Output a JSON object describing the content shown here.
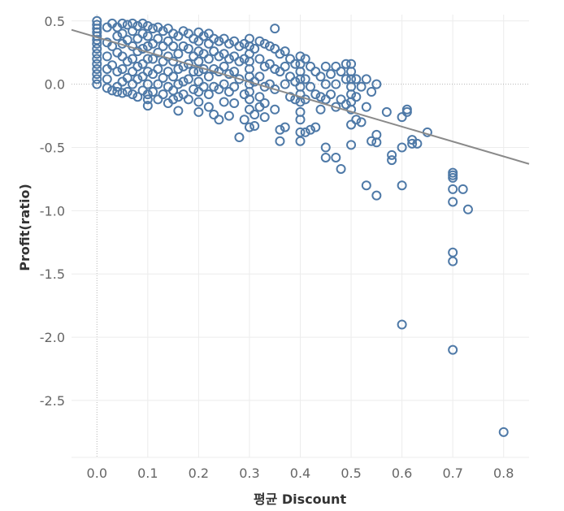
{
  "chart_data": {
    "type": "scatter",
    "xlabel": "평균 Discount",
    "ylabel": "Profit(ratio)",
    "xlim": [
      -0.05,
      0.85
    ],
    "ylim": [
      -2.95,
      0.55
    ],
    "x_ticks": [
      0.0,
      0.1,
      0.2,
      0.3,
      0.4,
      0.5,
      0.6,
      0.7,
      0.8
    ],
    "x_tick_labels": [
      "0.0",
      "0.1",
      "0.2",
      "0.3",
      "0.4",
      "0.5",
      "0.6",
      "0.7",
      "0.8"
    ],
    "y_ticks": [
      0.5,
      0.0,
      -0.5,
      -1.0,
      -1.5,
      -2.0,
      -2.5
    ],
    "y_tick_labels": [
      "0.5",
      "0.0",
      "-0.5",
      "-1.0",
      "-1.5",
      "-2.0",
      "-2.5"
    ],
    "grid": true,
    "marker_color": "#4e79a7",
    "trend_color": "#8a8a8a",
    "trend_line": {
      "x": [
        -0.05,
        0.85
      ],
      "y": [
        0.43,
        -0.63
      ]
    },
    "points": [
      [
        0.0,
        0.5
      ],
      [
        0.0,
        0.47
      ],
      [
        0.0,
        0.44
      ],
      [
        0.0,
        0.41
      ],
      [
        0.0,
        0.38
      ],
      [
        0.0,
        0.35
      ],
      [
        0.0,
        0.32
      ],
      [
        0.0,
        0.28
      ],
      [
        0.0,
        0.24
      ],
      [
        0.0,
        0.2
      ],
      [
        0.0,
        0.16
      ],
      [
        0.0,
        0.12
      ],
      [
        0.0,
        0.08
      ],
      [
        0.0,
        0.04
      ],
      [
        0.0,
        0.0
      ],
      [
        0.02,
        0.45
      ],
      [
        0.02,
        0.33
      ],
      [
        0.02,
        0.22
      ],
      [
        0.02,
        0.12
      ],
      [
        0.02,
        0.04
      ],
      [
        0.02,
        -0.03
      ],
      [
        0.03,
        0.48
      ],
      [
        0.03,
        0.3
      ],
      [
        0.03,
        0.15
      ],
      [
        0.03,
        -0.05
      ],
      [
        0.04,
        0.45
      ],
      [
        0.04,
        0.38
      ],
      [
        0.04,
        0.25
      ],
      [
        0.04,
        0.1
      ],
      [
        0.04,
        -0.02
      ],
      [
        0.04,
        -0.06
      ],
      [
        0.05,
        0.48
      ],
      [
        0.05,
        0.4
      ],
      [
        0.05,
        0.32
      ],
      [
        0.05,
        0.22
      ],
      [
        0.05,
        0.12
      ],
      [
        0.05,
        0.02
      ],
      [
        0.05,
        -0.07
      ],
      [
        0.06,
        0.47
      ],
      [
        0.06,
        0.35
      ],
      [
        0.06,
        0.18
      ],
      [
        0.06,
        0.05
      ],
      [
        0.06,
        -0.06
      ],
      [
        0.07,
        0.48
      ],
      [
        0.07,
        0.42
      ],
      [
        0.07,
        0.3
      ],
      [
        0.07,
        0.2
      ],
      [
        0.07,
        0.1
      ],
      [
        0.07,
        0.0
      ],
      [
        0.07,
        -0.08
      ],
      [
        0.08,
        0.46
      ],
      [
        0.08,
        0.36
      ],
      [
        0.08,
        0.26
      ],
      [
        0.08,
        0.14
      ],
      [
        0.08,
        0.04
      ],
      [
        0.08,
        -0.1
      ],
      [
        0.09,
        0.48
      ],
      [
        0.09,
        0.4
      ],
      [
        0.09,
        0.28
      ],
      [
        0.09,
        0.16
      ],
      [
        0.09,
        0.06
      ],
      [
        0.09,
        -0.05
      ],
      [
        0.1,
        0.46
      ],
      [
        0.1,
        0.38
      ],
      [
        0.1,
        0.3
      ],
      [
        0.1,
        0.2
      ],
      [
        0.1,
        0.1
      ],
      [
        0.1,
        0.0
      ],
      [
        0.1,
        -0.08
      ],
      [
        0.1,
        -0.12
      ],
      [
        0.1,
        -0.17
      ],
      [
        0.11,
        0.44
      ],
      [
        0.11,
        0.32
      ],
      [
        0.11,
        0.2
      ],
      [
        0.11,
        0.08
      ],
      [
        0.11,
        -0.06
      ],
      [
        0.12,
        0.45
      ],
      [
        0.12,
        0.36
      ],
      [
        0.12,
        0.25
      ],
      [
        0.12,
        0.12
      ],
      [
        0.12,
        0.0
      ],
      [
        0.12,
        -0.12
      ],
      [
        0.13,
        0.42
      ],
      [
        0.13,
        0.3
      ],
      [
        0.13,
        0.18
      ],
      [
        0.13,
        0.05
      ],
      [
        0.13,
        -0.08
      ],
      [
        0.14,
        0.44
      ],
      [
        0.14,
        0.34
      ],
      [
        0.14,
        0.22
      ],
      [
        0.14,
        0.1
      ],
      [
        0.14,
        -0.02
      ],
      [
        0.14,
        -0.15
      ],
      [
        0.15,
        0.4
      ],
      [
        0.15,
        0.3
      ],
      [
        0.15,
        0.18
      ],
      [
        0.15,
        0.06
      ],
      [
        0.15,
        -0.05
      ],
      [
        0.15,
        -0.12
      ],
      [
        0.16,
        0.38
      ],
      [
        0.16,
        0.24
      ],
      [
        0.16,
        0.12
      ],
      [
        0.16,
        0.0
      ],
      [
        0.16,
        -0.1
      ],
      [
        0.16,
        -0.21
      ],
      [
        0.17,
        0.42
      ],
      [
        0.17,
        0.3
      ],
      [
        0.17,
        0.14
      ],
      [
        0.17,
        0.02
      ],
      [
        0.17,
        -0.08
      ],
      [
        0.18,
        0.4
      ],
      [
        0.18,
        0.28
      ],
      [
        0.18,
        0.16
      ],
      [
        0.18,
        0.04
      ],
      [
        0.18,
        -0.12
      ],
      [
        0.19,
        0.36
      ],
      [
        0.19,
        0.22
      ],
      [
        0.19,
        0.1
      ],
      [
        0.19,
        -0.04
      ],
      [
        0.2,
        0.41
      ],
      [
        0.2,
        0.34
      ],
      [
        0.2,
        0.26
      ],
      [
        0.2,
        0.18
      ],
      [
        0.2,
        0.1
      ],
      [
        0.2,
        0.02
      ],
      [
        0.2,
        -0.06
      ],
      [
        0.2,
        -0.14
      ],
      [
        0.2,
        -0.22
      ],
      [
        0.21,
        0.38
      ],
      [
        0.21,
        0.24
      ],
      [
        0.21,
        0.12
      ],
      [
        0.21,
        -0.02
      ],
      [
        0.22,
        0.4
      ],
      [
        0.22,
        0.32
      ],
      [
        0.22,
        0.2
      ],
      [
        0.22,
        0.06
      ],
      [
        0.22,
        -0.08
      ],
      [
        0.22,
        -0.18
      ],
      [
        0.23,
        0.36
      ],
      [
        0.23,
        0.26
      ],
      [
        0.23,
        0.12
      ],
      [
        0.23,
        -0.02
      ],
      [
        0.23,
        -0.24
      ],
      [
        0.24,
        0.34
      ],
      [
        0.24,
        0.22
      ],
      [
        0.24,
        0.1
      ],
      [
        0.24,
        -0.04
      ],
      [
        0.24,
        -0.28
      ],
      [
        0.25,
        0.36
      ],
      [
        0.25,
        0.24
      ],
      [
        0.25,
        0.14
      ],
      [
        0.25,
        0.0
      ],
      [
        0.25,
        -0.14
      ],
      [
        0.26,
        0.32
      ],
      [
        0.26,
        0.2
      ],
      [
        0.26,
        0.08
      ],
      [
        0.26,
        -0.06
      ],
      [
        0.26,
        -0.25
      ],
      [
        0.27,
        0.34
      ],
      [
        0.27,
        0.22
      ],
      [
        0.27,
        0.1
      ],
      [
        0.27,
        -0.02
      ],
      [
        0.27,
        -0.15
      ],
      [
        0.28,
        0.3
      ],
      [
        0.28,
        0.18
      ],
      [
        0.28,
        0.04
      ],
      [
        0.28,
        -0.42
      ],
      [
        0.29,
        0.32
      ],
      [
        0.29,
        0.2
      ],
      [
        0.29,
        -0.08
      ],
      [
        0.29,
        -0.28
      ],
      [
        0.3,
        0.36
      ],
      [
        0.3,
        0.3
      ],
      [
        0.3,
        0.24
      ],
      [
        0.3,
        0.18
      ],
      [
        0.3,
        0.12
      ],
      [
        0.3,
        0.06
      ],
      [
        0.3,
        0.0
      ],
      [
        0.3,
        -0.06
      ],
      [
        0.3,
        -0.12
      ],
      [
        0.3,
        -0.2
      ],
      [
        0.3,
        -0.34
      ],
      [
        0.31,
        0.28
      ],
      [
        0.31,
        0.02
      ],
      [
        0.31,
        -0.24
      ],
      [
        0.31,
        -0.33
      ],
      [
        0.32,
        0.34
      ],
      [
        0.32,
        0.2
      ],
      [
        0.32,
        0.06
      ],
      [
        0.32,
        -0.1
      ],
      [
        0.32,
        -0.18
      ],
      [
        0.33,
        0.32
      ],
      [
        0.33,
        0.14
      ],
      [
        0.33,
        -0.02
      ],
      [
        0.33,
        -0.15
      ],
      [
        0.33,
        -0.26
      ],
      [
        0.34,
        0.3
      ],
      [
        0.34,
        0.16
      ],
      [
        0.34,
        0.0
      ],
      [
        0.35,
        0.44
      ],
      [
        0.35,
        0.28
      ],
      [
        0.35,
        0.12
      ],
      [
        0.35,
        -0.04
      ],
      [
        0.35,
        -0.2
      ],
      [
        0.36,
        0.24
      ],
      [
        0.36,
        0.1
      ],
      [
        0.36,
        -0.36
      ],
      [
        0.36,
        -0.45
      ],
      [
        0.37,
        0.26
      ],
      [
        0.37,
        0.14
      ],
      [
        0.37,
        0.0
      ],
      [
        0.37,
        -0.34
      ],
      [
        0.38,
        0.2
      ],
      [
        0.38,
        0.06
      ],
      [
        0.38,
        -0.1
      ],
      [
        0.39,
        0.16
      ],
      [
        0.39,
        0.02
      ],
      [
        0.39,
        -0.12
      ],
      [
        0.4,
        0.22
      ],
      [
        0.4,
        0.16
      ],
      [
        0.4,
        0.1
      ],
      [
        0.4,
        0.04
      ],
      [
        0.4,
        -0.02
      ],
      [
        0.4,
        -0.08
      ],
      [
        0.4,
        -0.14
      ],
      [
        0.4,
        -0.22
      ],
      [
        0.4,
        -0.28
      ],
      [
        0.4,
        -0.38
      ],
      [
        0.4,
        -0.45
      ],
      [
        0.41,
        0.2
      ],
      [
        0.41,
        0.04
      ],
      [
        0.41,
        -0.12
      ],
      [
        0.41,
        -0.38
      ],
      [
        0.42,
        0.14
      ],
      [
        0.42,
        -0.02
      ],
      [
        0.42,
        -0.36
      ],
      [
        0.43,
        0.1
      ],
      [
        0.43,
        -0.08
      ],
      [
        0.43,
        -0.34
      ],
      [
        0.44,
        0.06
      ],
      [
        0.44,
        -0.1
      ],
      [
        0.44,
        -0.2
      ],
      [
        0.45,
        0.14
      ],
      [
        0.45,
        0.0
      ],
      [
        0.45,
        -0.12
      ],
      [
        0.45,
        -0.5
      ],
      [
        0.45,
        -0.58
      ],
      [
        0.46,
        0.08
      ],
      [
        0.46,
        -0.08
      ],
      [
        0.47,
        0.14
      ],
      [
        0.47,
        0.0
      ],
      [
        0.47,
        -0.18
      ],
      [
        0.47,
        -0.58
      ],
      [
        0.48,
        0.1
      ],
      [
        0.48,
        -0.12
      ],
      [
        0.48,
        -0.67
      ],
      [
        0.49,
        0.16
      ],
      [
        0.49,
        0.04
      ],
      [
        0.49,
        -0.16
      ],
      [
        0.5,
        0.16
      ],
      [
        0.5,
        0.1
      ],
      [
        0.5,
        0.04
      ],
      [
        0.5,
        -0.02
      ],
      [
        0.5,
        -0.08
      ],
      [
        0.5,
        -0.14
      ],
      [
        0.5,
        -0.2
      ],
      [
        0.5,
        -0.32
      ],
      [
        0.5,
        -0.48
      ],
      [
        0.51,
        0.04
      ],
      [
        0.51,
        -0.1
      ],
      [
        0.51,
        -0.28
      ],
      [
        0.52,
        -0.02
      ],
      [
        0.52,
        -0.3
      ],
      [
        0.53,
        0.04
      ],
      [
        0.53,
        -0.18
      ],
      [
        0.53,
        -0.8
      ],
      [
        0.54,
        -0.06
      ],
      [
        0.54,
        -0.45
      ],
      [
        0.55,
        0.0
      ],
      [
        0.55,
        -0.4
      ],
      [
        0.55,
        -0.46
      ],
      [
        0.55,
        -0.88
      ],
      [
        0.57,
        -0.22
      ],
      [
        0.58,
        -0.56
      ],
      [
        0.58,
        -0.6
      ],
      [
        0.6,
        -0.26
      ],
      [
        0.6,
        -0.5
      ],
      [
        0.6,
        -0.8
      ],
      [
        0.6,
        -1.9
      ],
      [
        0.61,
        -0.2
      ],
      [
        0.61,
        -0.22
      ],
      [
        0.62,
        -0.44
      ],
      [
        0.62,
        -0.47
      ],
      [
        0.63,
        -0.47
      ],
      [
        0.65,
        -0.38
      ],
      [
        0.7,
        -0.7
      ],
      [
        0.7,
        -0.72
      ],
      [
        0.7,
        -0.74
      ],
      [
        0.7,
        -0.83
      ],
      [
        0.7,
        -0.93
      ],
      [
        0.7,
        -1.33
      ],
      [
        0.7,
        -1.4
      ],
      [
        0.7,
        -2.1
      ],
      [
        0.72,
        -0.83
      ],
      [
        0.73,
        -0.99
      ],
      [
        0.8,
        -2.75
      ]
    ]
  }
}
